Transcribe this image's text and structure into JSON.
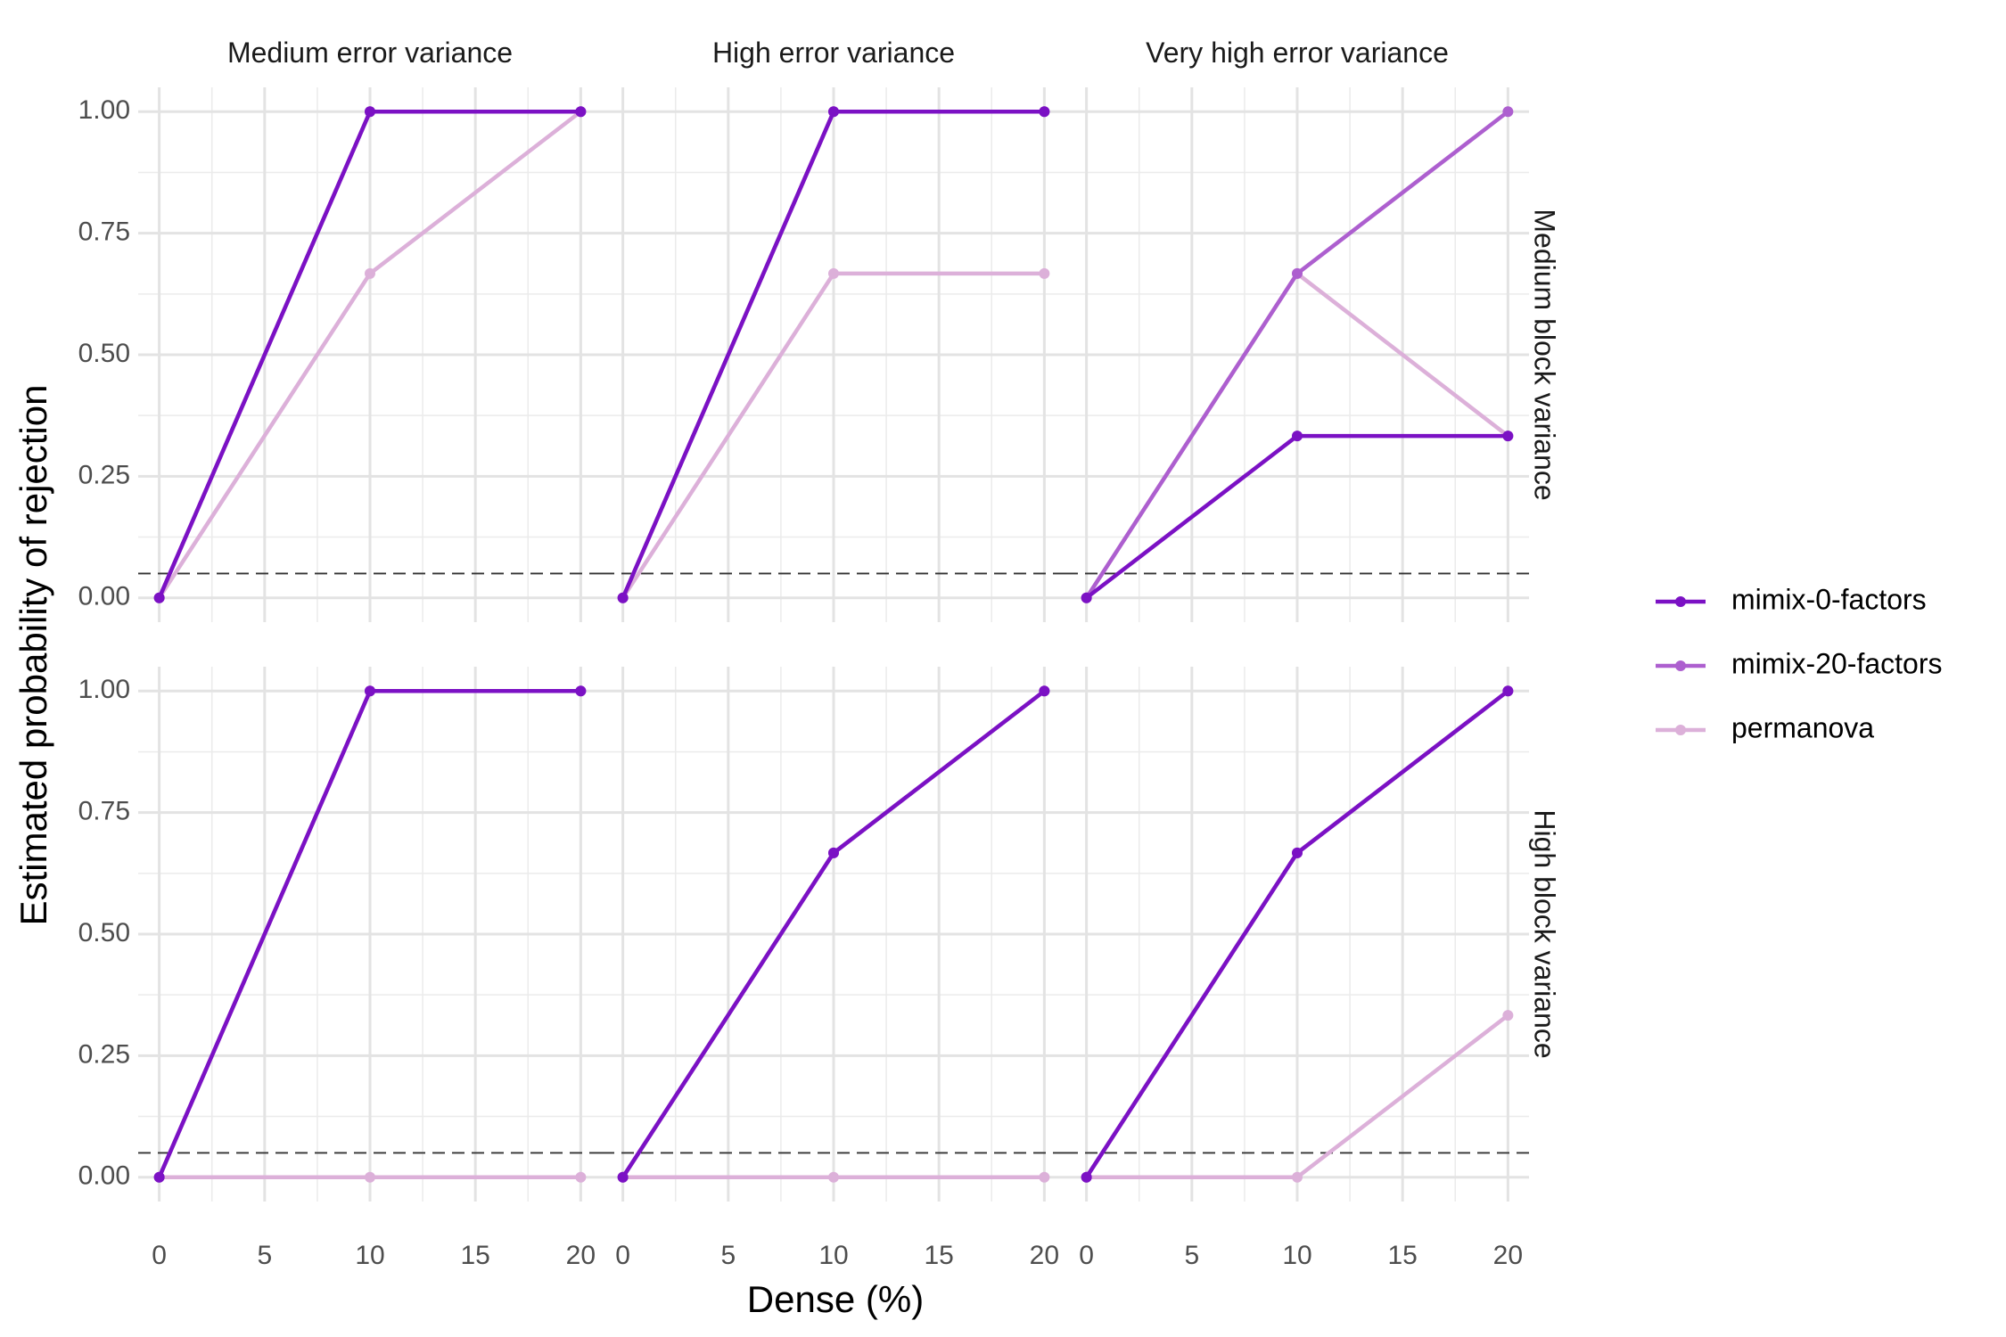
{
  "chart_data": {
    "type": "line",
    "title": "",
    "xlabel": "Dense (%)",
    "ylabel": "Estimated probability of rejection",
    "xlim": [
      -1,
      21
    ],
    "ylim": [
      -0.05,
      1.05
    ],
    "x_ticks": [
      0,
      5,
      10,
      15,
      20
    ],
    "x_tick_labels": [
      "0",
      "5",
      "10",
      "15",
      "20"
    ],
    "y_ticks": [
      0,
      0.25,
      0.5,
      0.75,
      1.0
    ],
    "y_tick_labels": [
      "0.00",
      "0.25",
      "0.50",
      "0.75",
      "1.00"
    ],
    "reference_line": {
      "y": 0.05,
      "style": "dashed"
    },
    "grid": true,
    "legend_position": "right",
    "col_facets": [
      "Medium error variance",
      "High error variance",
      "Very high error variance"
    ],
    "row_facets": [
      "Medium block variance",
      "High block variance"
    ],
    "series_styles": [
      {
        "name": "mimix-0-factors",
        "color": "#7b11c4"
      },
      {
        "name": "mimix-20-factors",
        "color": "#ad5fcf"
      },
      {
        "name": "permanova",
        "color": "#dcb0d9"
      }
    ],
    "panels": [
      {
        "row": 0,
        "col": 0,
        "x": [
          0,
          10,
          20
        ],
        "series": [
          {
            "name": "mimix-0-factors",
            "values": [
              0,
              1.0,
              1.0
            ]
          },
          {
            "name": "mimix-20-factors",
            "values": [
              0,
              1.0,
              1.0
            ]
          },
          {
            "name": "permanova",
            "values": [
              0,
              0.667,
              1.0
            ]
          }
        ]
      },
      {
        "row": 0,
        "col": 1,
        "x": [
          0,
          10,
          20
        ],
        "series": [
          {
            "name": "mimix-0-factors",
            "values": [
              0,
              1.0,
              1.0
            ]
          },
          {
            "name": "mimix-20-factors",
            "values": [
              0,
              1.0,
              1.0
            ]
          },
          {
            "name": "permanova",
            "values": [
              0,
              0.667,
              0.667
            ]
          }
        ]
      },
      {
        "row": 0,
        "col": 2,
        "x": [
          0,
          10,
          20
        ],
        "series": [
          {
            "name": "mimix-0-factors",
            "values": [
              0,
              0.333,
              0.333
            ]
          },
          {
            "name": "mimix-20-factors",
            "values": [
              0,
              0.667,
              1.0
            ]
          },
          {
            "name": "permanova",
            "values": [
              0,
              0.667,
              0.333
            ]
          }
        ]
      },
      {
        "row": 1,
        "col": 0,
        "x": [
          0,
          10,
          20
        ],
        "series": [
          {
            "name": "mimix-0-factors",
            "values": [
              0,
              1.0,
              1.0
            ]
          },
          {
            "name": "mimix-20-factors",
            "values": [
              0,
              1.0,
              1.0
            ]
          },
          {
            "name": "permanova",
            "values": [
              0,
              0,
              0
            ]
          }
        ]
      },
      {
        "row": 1,
        "col": 1,
        "x": [
          0,
          10,
          20
        ],
        "series": [
          {
            "name": "mimix-0-factors",
            "values": [
              0,
              0.667,
              1.0
            ]
          },
          {
            "name": "mimix-20-factors",
            "values": [
              0,
              0.667,
              1.0
            ]
          },
          {
            "name": "permanova",
            "values": [
              0,
              0,
              0
            ]
          }
        ]
      },
      {
        "row": 1,
        "col": 2,
        "x": [
          0,
          10,
          20
        ],
        "series": [
          {
            "name": "mimix-0-factors",
            "values": [
              0,
              0.667,
              1.0
            ]
          },
          {
            "name": "mimix-20-factors",
            "values": [
              0,
              0.667,
              1.0
            ]
          },
          {
            "name": "permanova",
            "values": [
              0,
              0,
              0.333
            ]
          }
        ]
      }
    ]
  }
}
